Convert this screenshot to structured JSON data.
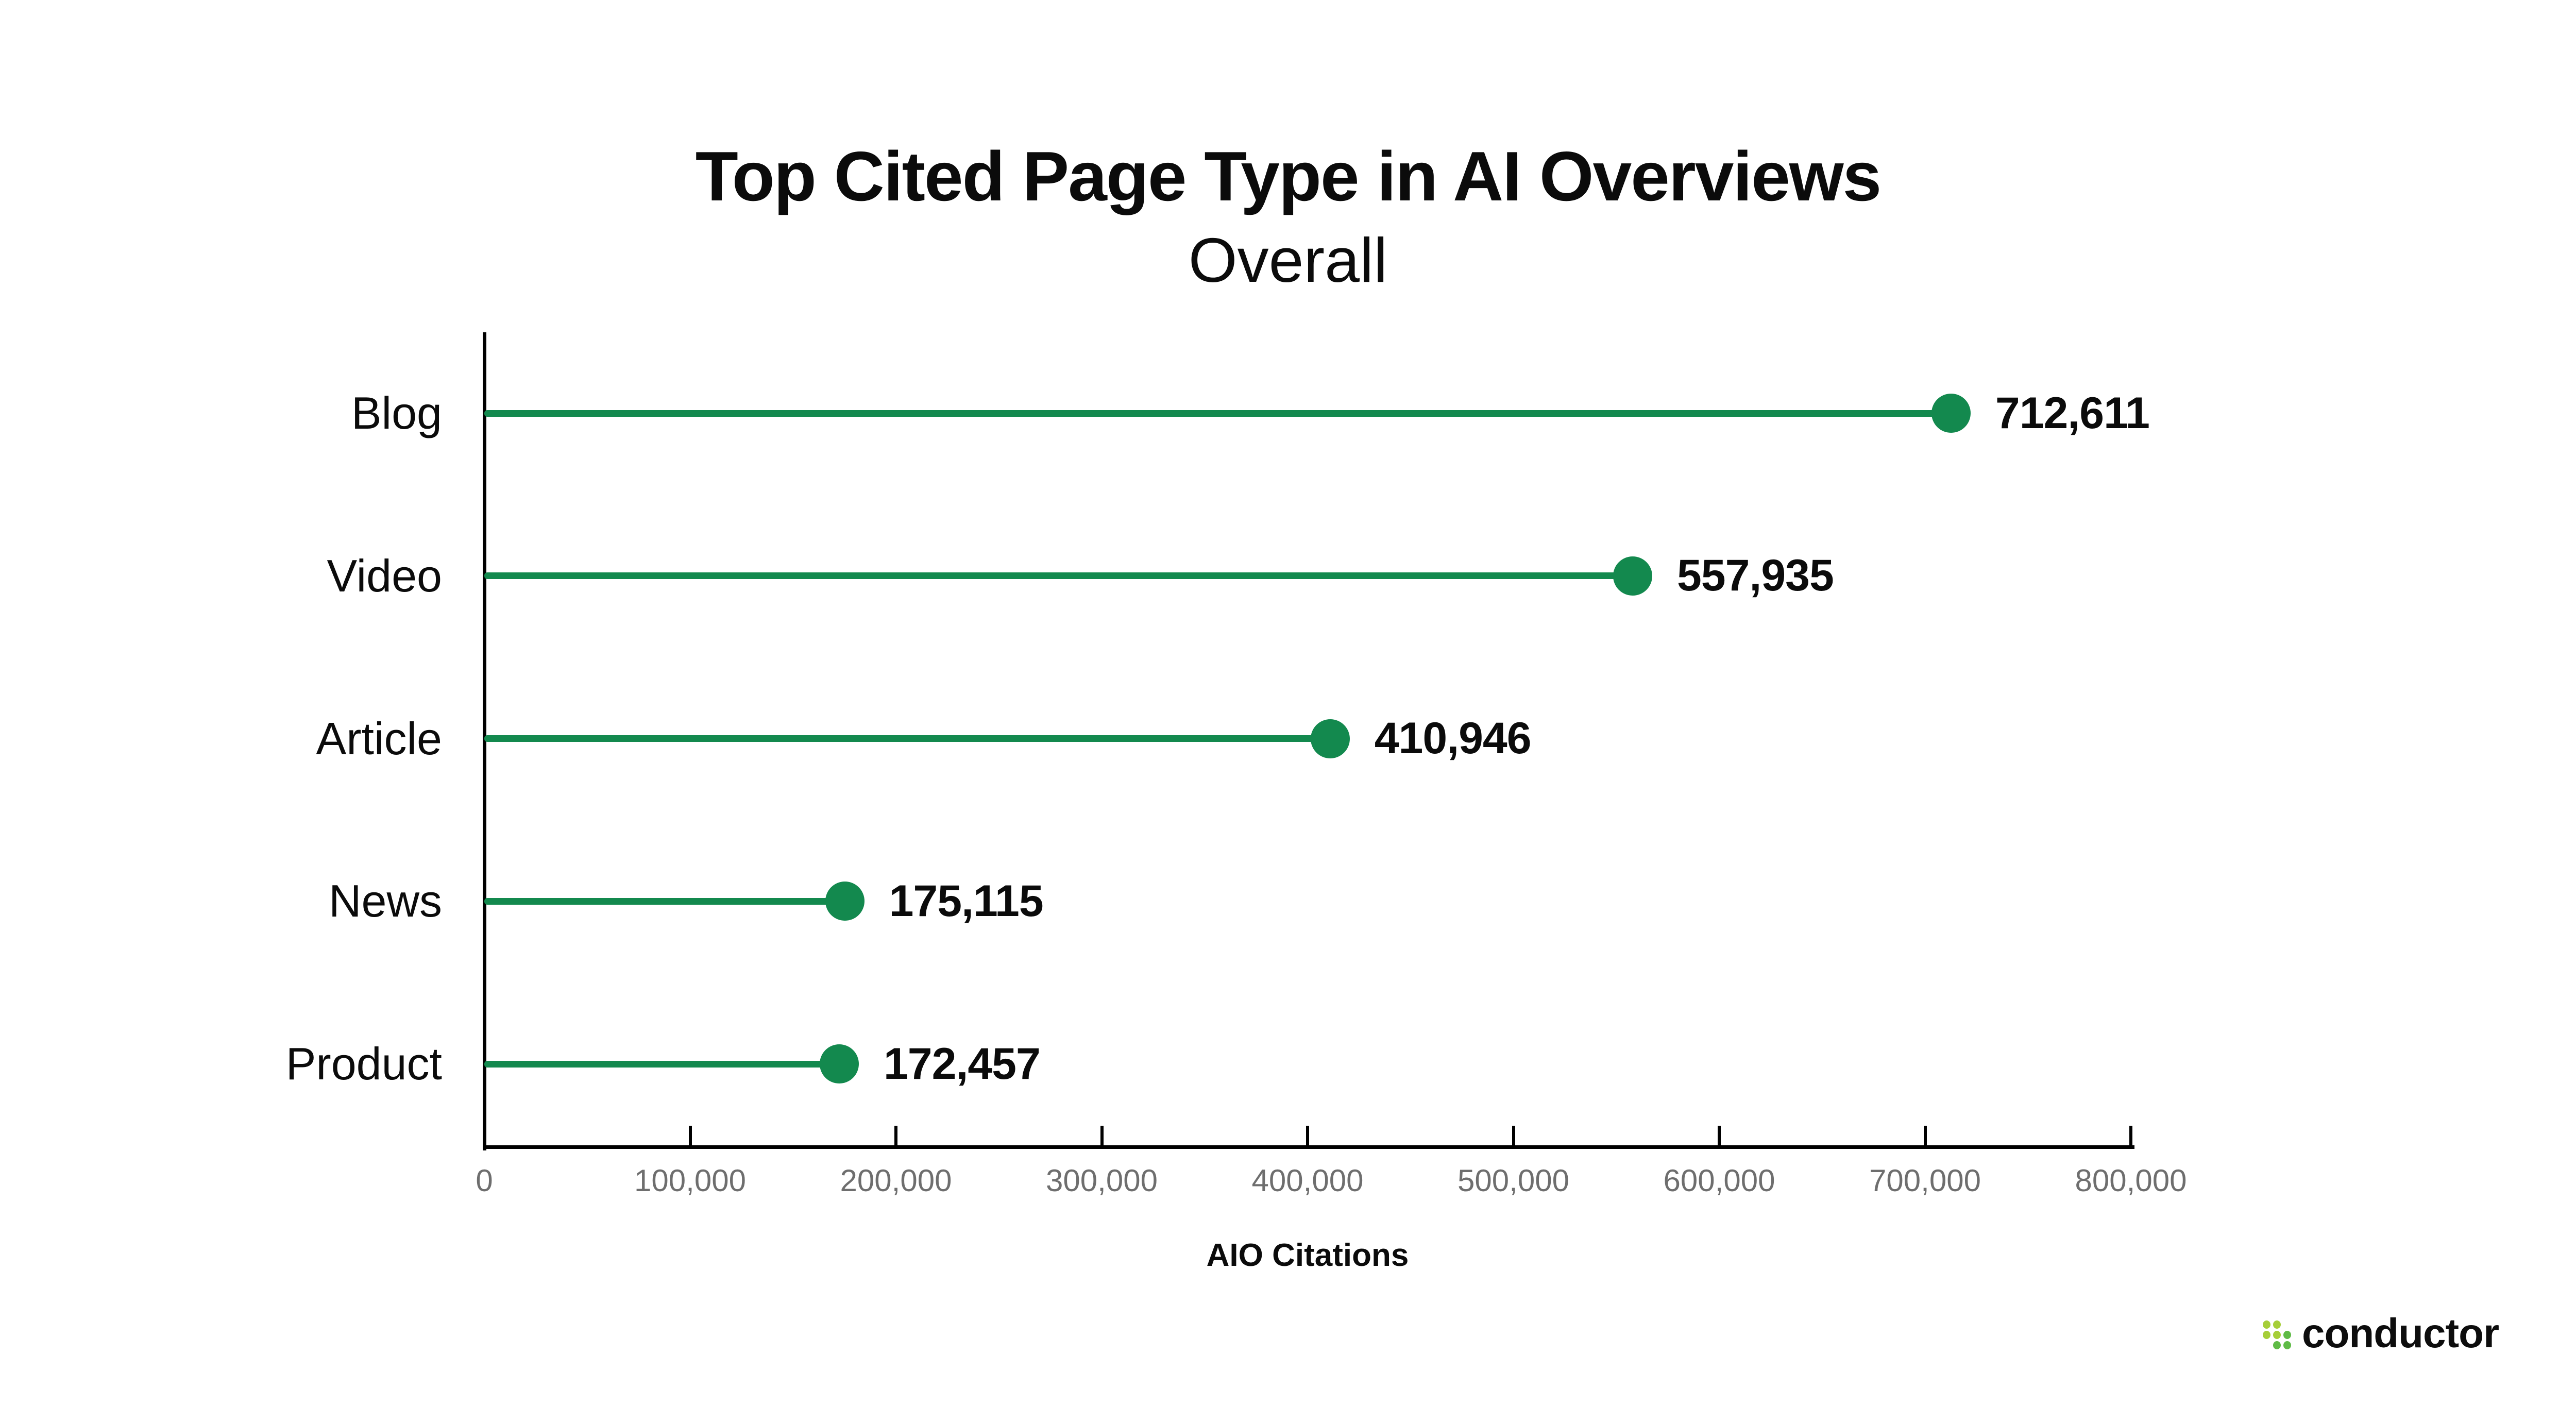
{
  "header": {
    "title": "Top Cited Page Type in AI Overviews",
    "subtitle": "Overall"
  },
  "chart_data": {
    "type": "bar",
    "variant": "lollipop-horizontal",
    "title": "Top Cited Page Type in AI Overviews",
    "subtitle": "Overall",
    "categories": [
      "Blog",
      "Video",
      "Article",
      "News",
      "Product"
    ],
    "values": [
      712611,
      557935,
      410946,
      175115,
      172457
    ],
    "value_labels": [
      "712,611",
      "557,935",
      "410,946",
      "175,115",
      "172,457"
    ],
    "xlabel": "AIO Citations",
    "ylabel": "",
    "xlim": [
      0,
      800000
    ],
    "xticks": [
      0,
      100000,
      200000,
      300000,
      400000,
      500000,
      600000,
      700000,
      800000
    ],
    "xtick_labels": [
      "0",
      "100,000",
      "200,000",
      "300,000",
      "400,000",
      "500,000",
      "600,000",
      "700,000",
      "800,000"
    ],
    "grid": false,
    "legend": false,
    "accent_color": "#13894E",
    "axis_color": "#000000",
    "tick_label_color": "#6e6e6e"
  },
  "branding": {
    "logo_text": "conductor",
    "logo_dot_light": "#A6CE39",
    "logo_dot_dark": "#5FBB46"
  }
}
